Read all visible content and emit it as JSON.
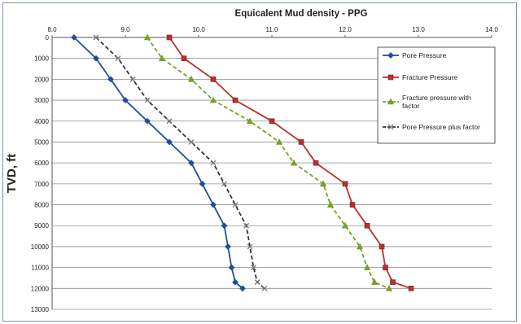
{
  "chart_data": {
    "type": "line",
    "title": "Equicalent Mud density - PPG",
    "xlabel": "",
    "ylabel": "TVD, ft",
    "xlim": [
      8.0,
      14.0
    ],
    "ylim": [
      0,
      13000
    ],
    "x_axis_position": "top",
    "y_axis_inverted": true,
    "grid": "horizontal",
    "x_ticks": [
      "8.0",
      "9.0",
      "10.0",
      "11.0",
      "12.0",
      "13.0",
      "14.0"
    ],
    "y_ticks": [
      "0",
      "1000",
      "2000",
      "3000",
      "4000",
      "5000",
      "6000",
      "7000",
      "8000",
      "9000",
      "10000",
      "11000",
      "12000",
      "13000"
    ],
    "legend_position": "right",
    "series": [
      {
        "name": "Pore Pressure",
        "color": "#1f4e9c",
        "dash": "solid",
        "marker": "diamond",
        "points": [
          [
            8.3,
            0
          ],
          [
            8.6,
            1000
          ],
          [
            8.8,
            2000
          ],
          [
            9.0,
            3000
          ],
          [
            9.3,
            4000
          ],
          [
            9.6,
            5000
          ],
          [
            9.9,
            6000
          ],
          [
            10.05,
            7000
          ],
          [
            10.2,
            8000
          ],
          [
            10.35,
            9000
          ],
          [
            10.4,
            10000
          ],
          [
            10.45,
            11000
          ],
          [
            10.5,
            11700
          ],
          [
            10.6,
            12000
          ]
        ]
      },
      {
        "name": "Fracture Pressure",
        "color": "#b8312f",
        "dash": "solid",
        "marker": "square",
        "points": [
          [
            9.6,
            0
          ],
          [
            9.8,
            1000
          ],
          [
            10.2,
            2000
          ],
          [
            10.5,
            3000
          ],
          [
            11.0,
            4000
          ],
          [
            11.4,
            5000
          ],
          [
            11.6,
            6000
          ],
          [
            12.0,
            7000
          ],
          [
            12.1,
            8000
          ],
          [
            12.3,
            9000
          ],
          [
            12.5,
            10000
          ],
          [
            12.55,
            11000
          ],
          [
            12.65,
            11700
          ],
          [
            12.9,
            12000
          ]
        ]
      },
      {
        "name": "Fracture pressure with factor",
        "color": "#76a02c",
        "dash": "dashed",
        "marker": "triangle",
        "points": [
          [
            9.3,
            0
          ],
          [
            9.5,
            1000
          ],
          [
            9.9,
            2000
          ],
          [
            10.2,
            3000
          ],
          [
            10.7,
            4000
          ],
          [
            11.1,
            5000
          ],
          [
            11.3,
            6000
          ],
          [
            11.7,
            7000
          ],
          [
            11.8,
            8000
          ],
          [
            12.0,
            9000
          ],
          [
            12.2,
            10000
          ],
          [
            12.3,
            11000
          ],
          [
            12.4,
            11700
          ],
          [
            12.6,
            12000
          ]
        ]
      },
      {
        "name": "Pore Pressure plus factor",
        "color": "#333333",
        "dash": "dashed",
        "marker": "x",
        "points": [
          [
            8.6,
            0
          ],
          [
            8.9,
            1000
          ],
          [
            9.1,
            2000
          ],
          [
            9.3,
            3000
          ],
          [
            9.6,
            4000
          ],
          [
            9.9,
            5000
          ],
          [
            10.2,
            6000
          ],
          [
            10.35,
            7000
          ],
          [
            10.5,
            8000
          ],
          [
            10.65,
            9000
          ],
          [
            10.7,
            10000
          ],
          [
            10.75,
            11000
          ],
          [
            10.8,
            11700
          ],
          [
            10.9,
            12000
          ]
        ]
      }
    ]
  }
}
